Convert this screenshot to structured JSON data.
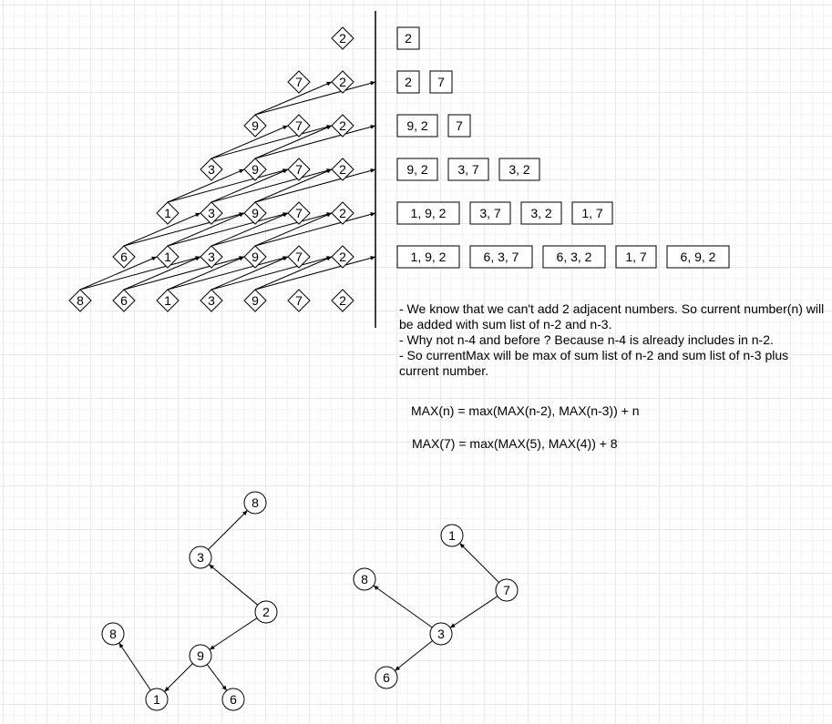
{
  "diamond_rows": [
    [
      "2"
    ],
    [
      "7",
      "2"
    ],
    [
      "9",
      "7",
      "2"
    ],
    [
      "3",
      "9",
      "7",
      "2"
    ],
    [
      "1",
      "3",
      "9",
      "7",
      "2"
    ],
    [
      "6",
      "1",
      "3",
      "9",
      "7",
      "2"
    ],
    [
      "8",
      "6",
      "1",
      "3",
      "9",
      "7",
      "2"
    ]
  ],
  "sum_rows": [
    [
      "2"
    ],
    [
      "2",
      "7"
    ],
    [
      "9, 2",
      "7"
    ],
    [
      "9, 2",
      "3, 7",
      "3, 2"
    ],
    [
      "1, 9, 2",
      "3, 7",
      "3, 2",
      "1, 7"
    ],
    [
      "1, 9, 2",
      "6, 3, 7",
      "6, 3, 2",
      "1, 7",
      "6, 9, 2"
    ]
  ],
  "notes": [
    "- We know that we can't add 2 adjacent numbers. So current number(n) will be added with sum list of n-2 and n-3.",
    "- Why not n-4 and before ? Because n-4 is already includes in n-2.",
    "- So currentMax will be max of sum list of n-2 and sum list of n-3 plus current number."
  ],
  "formula_general": "MAX(n) = max(MAX(n-2), MAX(n-3)) + n",
  "formula_example": "MAX(7) = max(MAX(5), MAX(4)) + 8",
  "tree_left": {
    "nodes": [
      {
        "id": "l8a",
        "label": "8"
      },
      {
        "id": "l3",
        "label": "3"
      },
      {
        "id": "l2",
        "label": "2"
      },
      {
        "id": "l9",
        "label": "9"
      },
      {
        "id": "l8b",
        "label": "8"
      },
      {
        "id": "l1",
        "label": "1"
      },
      {
        "id": "l6",
        "label": "6"
      }
    ],
    "edges": [
      [
        "l3",
        "l8a"
      ],
      [
        "l2",
        "l3"
      ],
      [
        "l2",
        "l9"
      ],
      [
        "l9",
        "l1"
      ],
      [
        "l9",
        "l6"
      ],
      [
        "l1",
        "l8b"
      ]
    ]
  },
  "tree_right": {
    "nodes": [
      {
        "id": "r1",
        "label": "1"
      },
      {
        "id": "r8",
        "label": "8"
      },
      {
        "id": "r7",
        "label": "7"
      },
      {
        "id": "r3",
        "label": "3"
      },
      {
        "id": "r6",
        "label": "6"
      }
    ],
    "edges": [
      [
        "r7",
        "r1"
      ],
      [
        "r7",
        "r3"
      ],
      [
        "r3",
        "r8"
      ],
      [
        "r3",
        "r6"
      ]
    ]
  },
  "colors": {
    "stroke": "#000000",
    "background": "#ffffff",
    "grid": "#e9e9e9"
  }
}
